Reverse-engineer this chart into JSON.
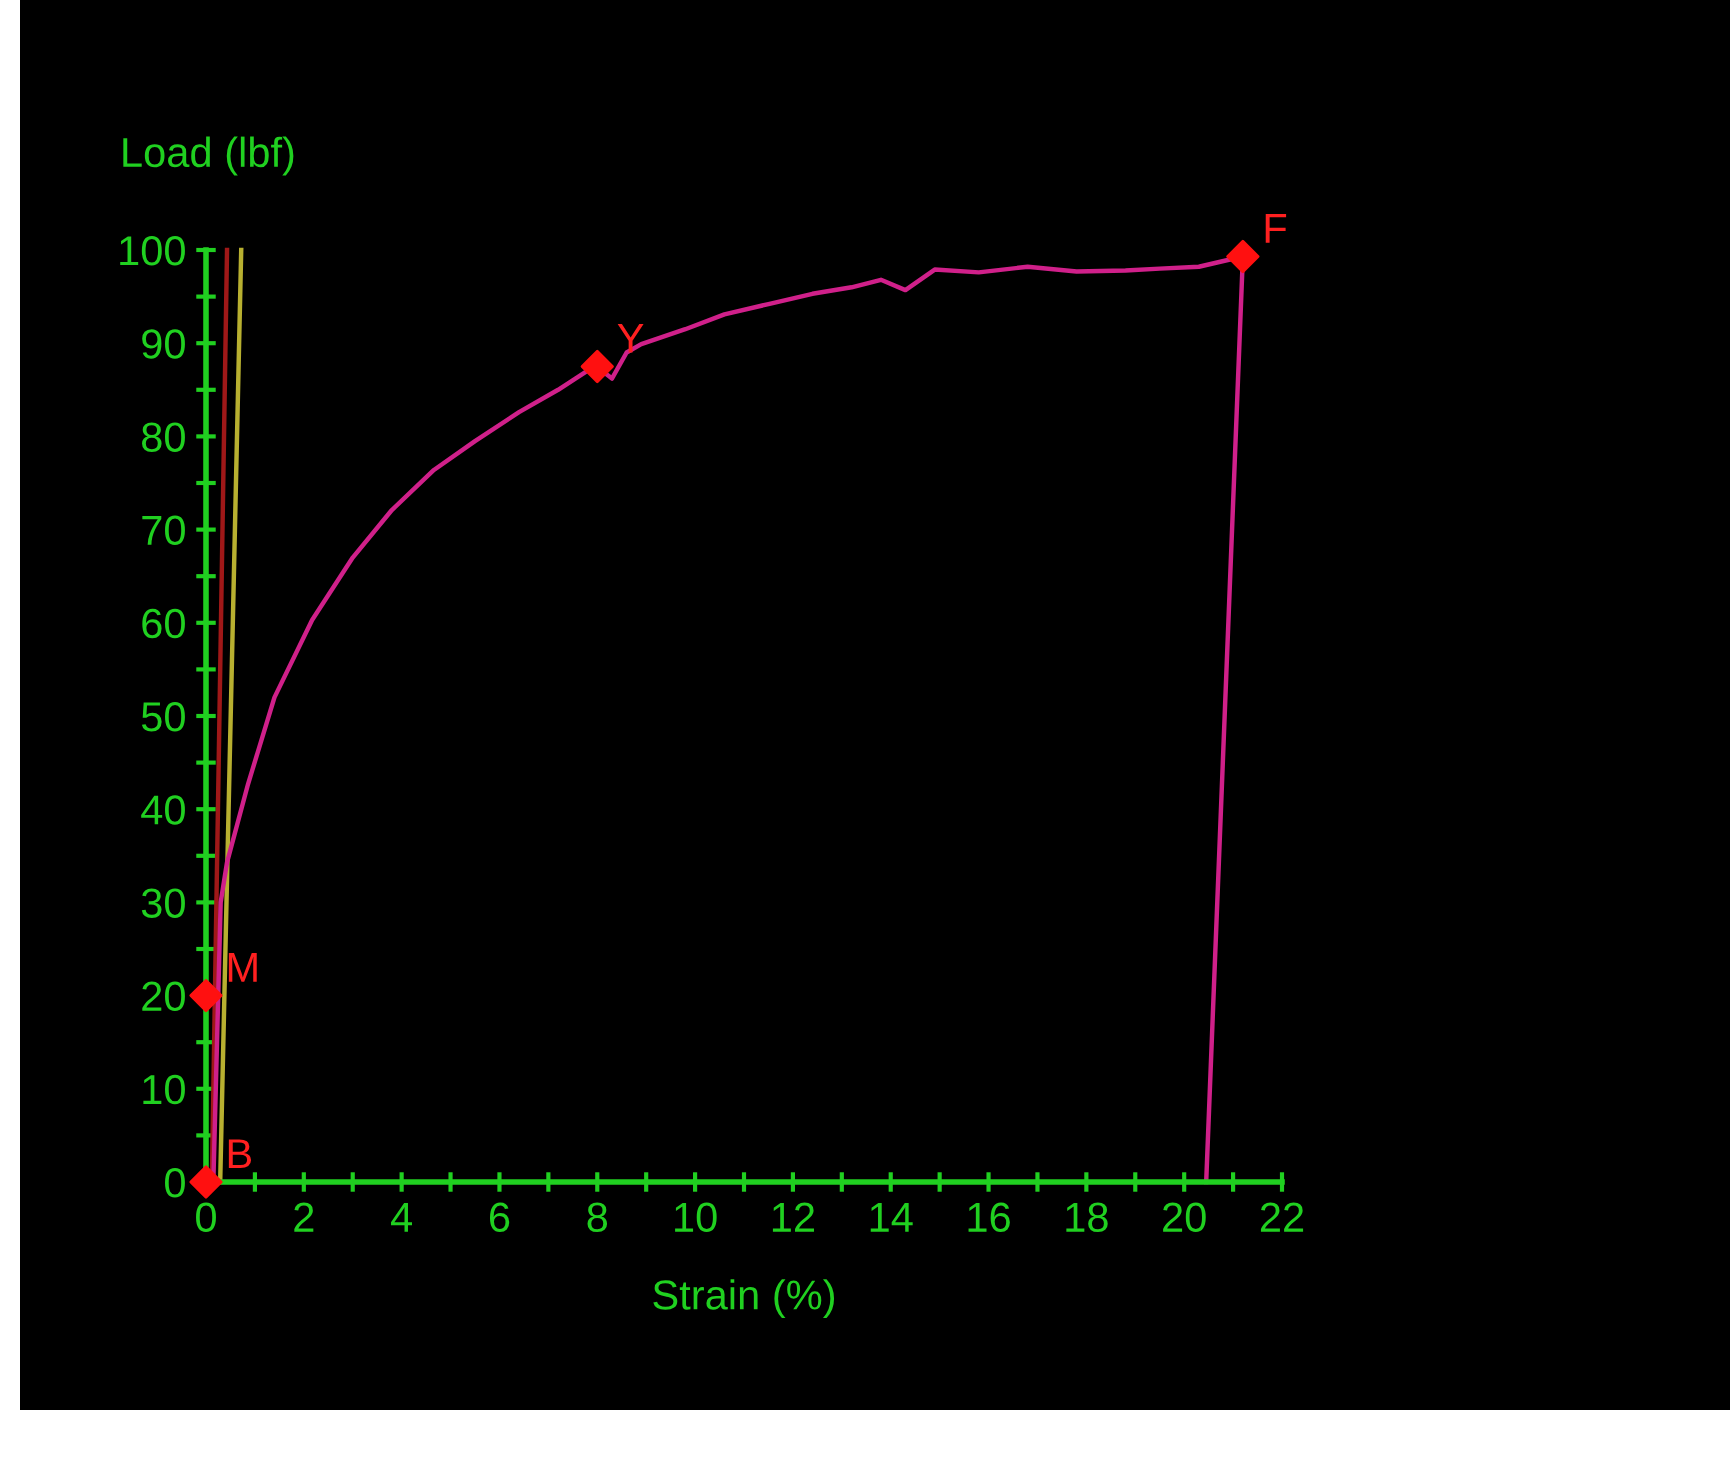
{
  "chart_data": {
    "type": "line",
    "xlabel": "Strain (%)",
    "ylabel": "Load (lbf)",
    "xlim": [
      0,
      22
    ],
    "ylim": [
      0,
      100
    ],
    "xticks": [
      0,
      {
        "value": 1,
        "label": null
      },
      2,
      {
        "value": 3,
        "label": null
      },
      4,
      {
        "value": 5,
        "label": null
      },
      6,
      {
        "value": 7,
        "label": null
      },
      8,
      {
        "value": 9,
        "label": null
      },
      10,
      {
        "value": 11,
        "label": null
      },
      12,
      {
        "value": 13,
        "label": null
      },
      14,
      {
        "value": 15,
        "label": null
      },
      16,
      {
        "value": 17,
        "label": null
      },
      18,
      {
        "value": 19,
        "label": null
      },
      20,
      {
        "value": 21,
        "label": null
      },
      22
    ],
    "yticks": [
      0,
      {
        "value": 5,
        "label": null
      },
      10,
      {
        "value": 15,
        "label": null
      },
      20,
      {
        "value": 25,
        "label": null
      },
      30,
      {
        "value": 35,
        "label": null
      },
      40,
      {
        "value": 45,
        "label": null
      },
      50,
      {
        "value": 55,
        "label": null
      },
      60,
      {
        "value": 65,
        "label": null
      },
      70,
      {
        "value": 75,
        "label": null
      },
      80,
      {
        "value": 85,
        "label": null
      },
      90,
      {
        "value": 95,
        "label": null
      },
      100
    ],
    "grid": false,
    "legend": false,
    "series": [
      {
        "color": "#a01818",
        "x": [
          0.12,
          0.43
        ],
        "values": [
          0,
          100
        ]
      },
      {
        "color": "#b8b030",
        "x": [
          0.29,
          0.72
        ],
        "values": [
          0,
          100
        ]
      },
      {
        "color": "#d0208a",
        "x": [
          0.15,
          0.3,
          0.43,
          0.86,
          1.4,
          2.17,
          3.0,
          3.8,
          4.66,
          5.5,
          6.4,
          7.2,
          7.96,
          8.3,
          8.6,
          8.9,
          9.8,
          10.6,
          11.5,
          12.4,
          13.2,
          13.8,
          14.3,
          14.9,
          15.8,
          16.8,
          17.8,
          18.8,
          19.5,
          20.3,
          21.2,
          20.45
        ],
        "values": [
          0,
          30,
          34.3,
          42.7,
          52,
          60.3,
          67,
          72.1,
          76.4,
          79.5,
          82.6,
          85,
          87.6,
          86.2,
          89,
          89.9,
          91.5,
          93.1,
          94.2,
          95.3,
          96,
          96.8,
          95.7,
          97.9,
          97.6,
          98.2,
          97.7,
          97.8,
          98,
          98.2,
          99.3,
          0
        ]
      },
      {
        "type": "scatter",
        "marker": "diamond",
        "color": "#ff1010",
        "x": [
          0,
          0,
          8,
          21.2
        ],
        "values": [
          0,
          20,
          87.5,
          99.3
        ]
      }
    ],
    "annotations": [
      {
        "text": "B",
        "x": 0,
        "y": 0
      },
      {
        "text": "M",
        "x": 0,
        "y": 20
      },
      {
        "text": "Y",
        "x": 8,
        "y": 87.5
      },
      {
        "text": "F",
        "x": 21.2,
        "y": 99.3
      }
    ]
  }
}
